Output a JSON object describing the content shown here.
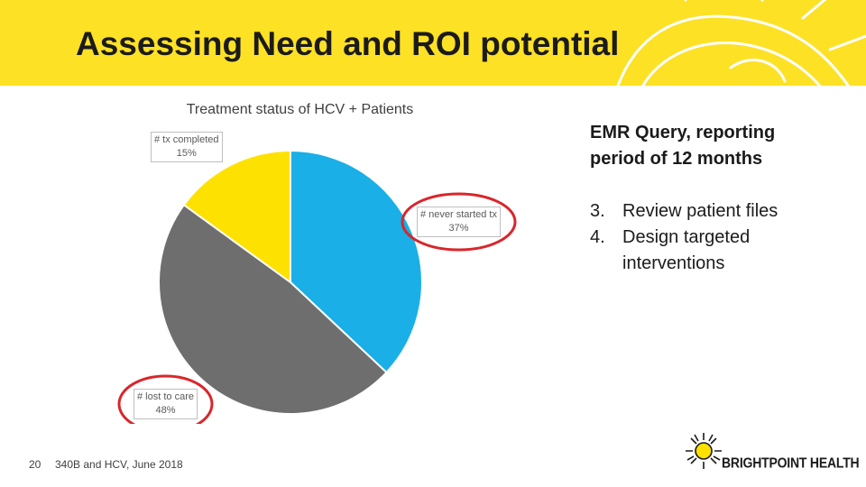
{
  "slide": {
    "title": "Assessing Need and ROI potential",
    "page_number": "20",
    "footer_text": "340B and HCV, June 2018"
  },
  "chart_data": {
    "type": "pie",
    "title": "Treatment status of HCV + Patients",
    "slices": [
      {
        "label": "# never started tx",
        "value": 37,
        "value_label": "37%",
        "color": "#1aafe6"
      },
      {
        "label": "# lost to care",
        "value": 48,
        "value_label": "48%",
        "color": "#6e6e6e"
      },
      {
        "label": "# tx completed",
        "value": 15,
        "value_label": "15%",
        "color": "#fde100"
      }
    ],
    "highlighted": [
      "# never started tx",
      "# lost to care"
    ],
    "highlight_color": "#d9262b"
  },
  "side_panel": {
    "heading_line1": "EMR Query, reporting",
    "heading_line2": "period of 12 months",
    "steps": [
      {
        "number": "3.",
        "text": "Review patient files"
      },
      {
        "number": "4.",
        "text": "Design targeted"
      },
      {
        "number": "",
        "text": "interventions"
      }
    ]
  },
  "logo": {
    "text": "BRIGHTPOINT HEALTH",
    "icon": "sun-icon"
  },
  "colors": {
    "banner": "#fde125",
    "accent_red": "#d9262b"
  }
}
